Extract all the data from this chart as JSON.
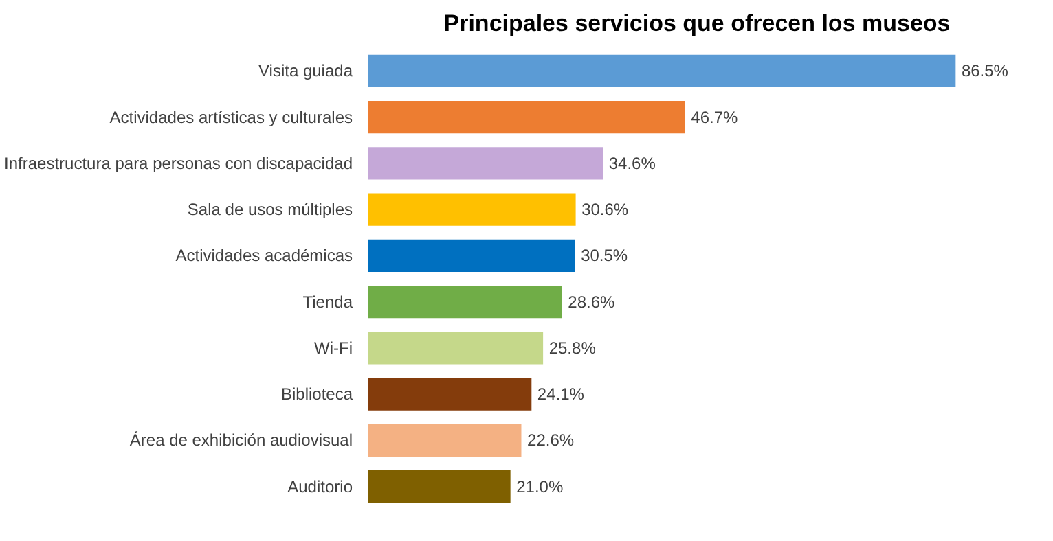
{
  "chart_data": {
    "type": "bar",
    "orientation": "horizontal",
    "title": "Principales servicios que ofrecen los museos",
    "categories": [
      "Visita guiada",
      "Actividades artísticas y culturales",
      "Infraestructura para personas con discapacidad",
      "Sala de usos múltiples",
      "Actividades académicas",
      "Tienda",
      "Wi-Fi",
      "Biblioteca",
      "Área de exhibición audiovisual",
      "Auditorio"
    ],
    "values": [
      86.5,
      46.7,
      34.6,
      30.6,
      30.5,
      28.6,
      25.8,
      24.1,
      22.6,
      21.0
    ],
    "value_labels": [
      "86.5%",
      "46.7%",
      "34.6%",
      "30.6%",
      "30.5%",
      "28.6%",
      "25.8%",
      "24.1%",
      "22.6%",
      "21.0%"
    ],
    "colors": [
      "#5b9bd5",
      "#ed7d31",
      "#c5a8d8",
      "#ffc000",
      "#0070c0",
      "#70ad47",
      "#c5d88a",
      "#843c0c",
      "#f4b183",
      "#7f6000"
    ],
    "grid": false
  }
}
